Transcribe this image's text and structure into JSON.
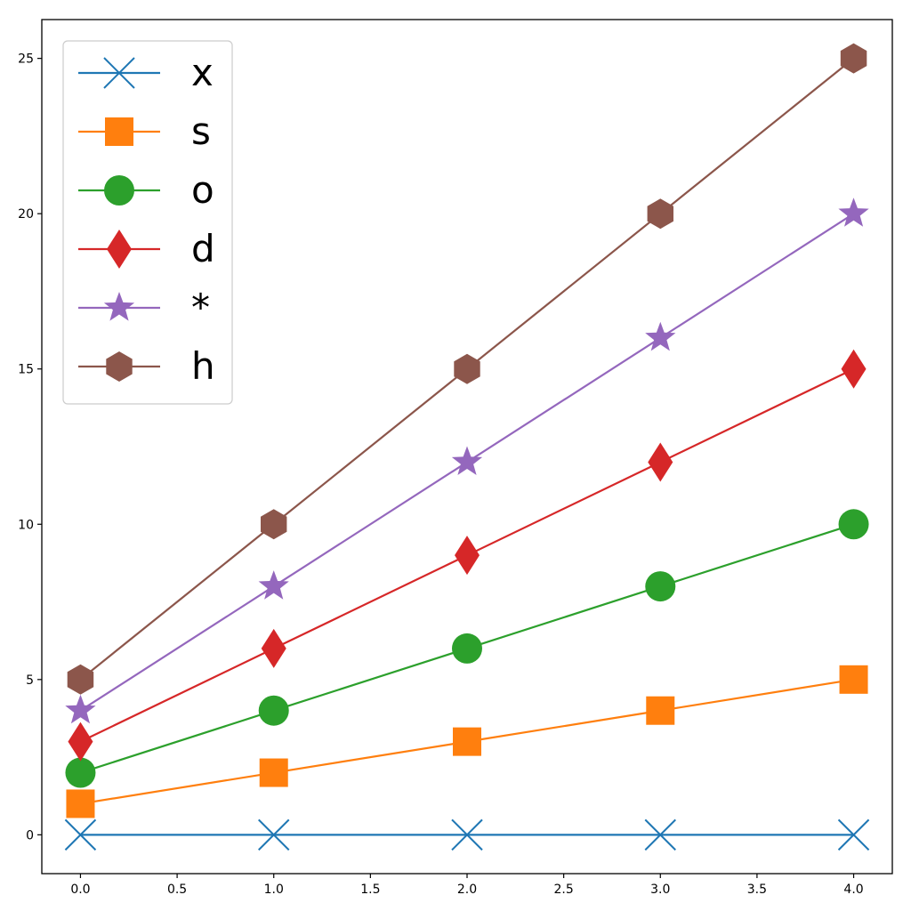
{
  "chart_data": {
    "type": "line",
    "title": "",
    "xlabel": "",
    "ylabel": "",
    "x": [
      0,
      1,
      2,
      3,
      4
    ],
    "xlim": [
      -0.2,
      4.2
    ],
    "ylim": [
      -1.25,
      26.25
    ],
    "grid": false,
    "legend_placement": "top-left",
    "xticks": [
      0.0,
      0.5,
      1.0,
      1.5,
      2.0,
      2.5,
      3.0,
      3.5,
      4.0
    ],
    "xtick_labels": [
      "0.0",
      "0.5",
      "1.0",
      "1.5",
      "2.0",
      "2.5",
      "3.0",
      "3.5",
      "4.0"
    ],
    "yticks": [
      0,
      5,
      10,
      15,
      20,
      25
    ],
    "ytick_labels": [
      "0",
      "5",
      "10",
      "15",
      "20",
      "25"
    ],
    "series": [
      {
        "name": "x",
        "marker": "x",
        "color": "#1f77b4",
        "values": [
          0,
          0,
          0,
          0,
          0
        ]
      },
      {
        "name": "s",
        "marker": "square",
        "color": "#ff7f0e",
        "values": [
          1,
          2,
          3,
          4,
          5
        ]
      },
      {
        "name": "o",
        "marker": "circle",
        "color": "#2ca02c",
        "values": [
          2,
          4,
          6,
          8,
          10
        ]
      },
      {
        "name": "d",
        "marker": "diamond",
        "color": "#d62728",
        "values": [
          3,
          6,
          9,
          12,
          15
        ]
      },
      {
        "name": "*",
        "marker": "star",
        "color": "#9467bd",
        "values": [
          4,
          8,
          12,
          16,
          20
        ]
      },
      {
        "name": "h",
        "marker": "hexagon",
        "color": "#8c564b",
        "values": [
          5,
          10,
          15,
          20,
          25
        ]
      }
    ]
  }
}
